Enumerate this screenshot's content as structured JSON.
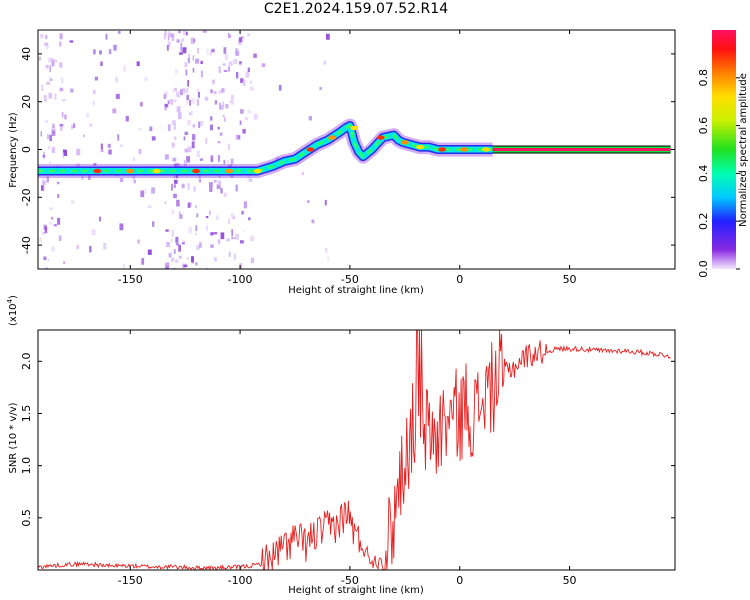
{
  "title": "C2E1.2024.159.07.52.R14",
  "chart_data": [
    {
      "type": "heatmap",
      "name": "spectrogram",
      "xlabel": "Height of straight line (km)",
      "ylabel": "Frequency (Hz)",
      "xlim": [
        -192,
        98
      ],
      "ylim": [
        -50,
        50
      ],
      "xticks": [
        -150,
        -100,
        -50,
        0,
        50
      ],
      "xtick_labels": [
        "-150",
        "-100",
        "-50",
        "0",
        "50"
      ],
      "yticks": [
        -40,
        -20,
        0,
        20,
        40
      ],
      "ytick_labels": [
        "-40",
        "-20",
        "0",
        "20",
        "40"
      ],
      "colorbar": {
        "label": "Normalized spectral amplitude",
        "range": [
          0,
          1
        ],
        "ticks": [
          0.0,
          0.2,
          0.4,
          0.6,
          0.8
        ],
        "tick_labels": [
          "0.0",
          "0.2",
          "0.4",
          "0.6",
          "0.8"
        ]
      },
      "ridge": {
        "x": [
          -192,
          -175,
          -150,
          -135,
          -125,
          -110,
          -100,
          -92,
          -85,
          -80,
          -75,
          -70,
          -65,
          -60,
          -55,
          -52,
          -50,
          -48,
          -46,
          -44,
          -40,
          -35,
          -30,
          -28,
          -26,
          -22,
          -18,
          -14,
          -10,
          -5,
          0,
          5,
          10,
          15
        ],
        "y": [
          -9,
          -9,
          -9,
          -9,
          -9,
          -9,
          -9,
          -9,
          -7,
          -5,
          -4,
          -1,
          2,
          4,
          7,
          9,
          10,
          3,
          -1,
          -3,
          0,
          5,
          6,
          4,
          3,
          2,
          1,
          1,
          0,
          0,
          0,
          0,
          0,
          0
        ]
      },
      "constant_line": {
        "x": [
          15,
          96
        ],
        "y": 0
      }
    },
    {
      "type": "line",
      "name": "snr",
      "xlabel": "Height of straight line (km)",
      "ylabel": "SNR (10 * v/v)",
      "y_multiplier_label": "(x10",
      "y_multiplier_exp": "4",
      "y_multiplier_close": ")",
      "xlim": [
        -192,
        98
      ],
      "ylim": [
        0,
        2.3
      ],
      "xticks": [
        -150,
        -100,
        -50,
        0,
        50
      ],
      "xtick_labels": [
        "-150",
        "-100",
        "-50",
        "0",
        "50"
      ],
      "yticks": [
        0.5,
        1.0,
        1.5,
        2.0
      ],
      "ytick_labels": [
        "0.5",
        "1.0",
        "1.5",
        "2.0"
      ],
      "line_color": "#e62020",
      "series": {
        "x": [
          -192,
          -180,
          -170,
          -160,
          -150,
          -140,
          -130,
          -120,
          -110,
          -100,
          -95,
          -90,
          -85,
          -80,
          -75,
          -70,
          -65,
          -60,
          -55,
          -52,
          -50,
          -47,
          -45,
          -42,
          -40,
          -38,
          -35,
          -32,
          -30,
          -28,
          -25,
          -22,
          -20,
          -18,
          -15,
          -12,
          -10,
          -8,
          -5,
          -2,
          0,
          3,
          5,
          8,
          10,
          12,
          15,
          18,
          20,
          25,
          30,
          35,
          40,
          45,
          50,
          55,
          60,
          65,
          70,
          75,
          80,
          85,
          90,
          96
        ],
        "y": [
          0.03,
          0.05,
          0.06,
          0.04,
          0.04,
          0.03,
          0.03,
          0.02,
          0.02,
          0.03,
          0.04,
          0.06,
          0.12,
          0.22,
          0.3,
          0.25,
          0.35,
          0.4,
          0.45,
          0.55,
          0.5,
          0.3,
          0.25,
          0.15,
          0.1,
          0.08,
          0.12,
          0.3,
          0.5,
          0.8,
          1.1,
          1.3,
          1.5,
          1.2,
          1.35,
          1.3,
          1.25,
          1.4,
          1.45,
          1.5,
          1.45,
          1.6,
          1.5,
          1.5,
          1.65,
          1.7,
          1.75,
          1.85,
          1.9,
          1.95,
          2.05,
          2.08,
          2.1,
          2.12,
          2.12,
          2.12,
          2.11,
          2.1,
          2.1,
          2.1,
          2.09,
          2.08,
          2.07,
          2.05
        ]
      }
    }
  ]
}
